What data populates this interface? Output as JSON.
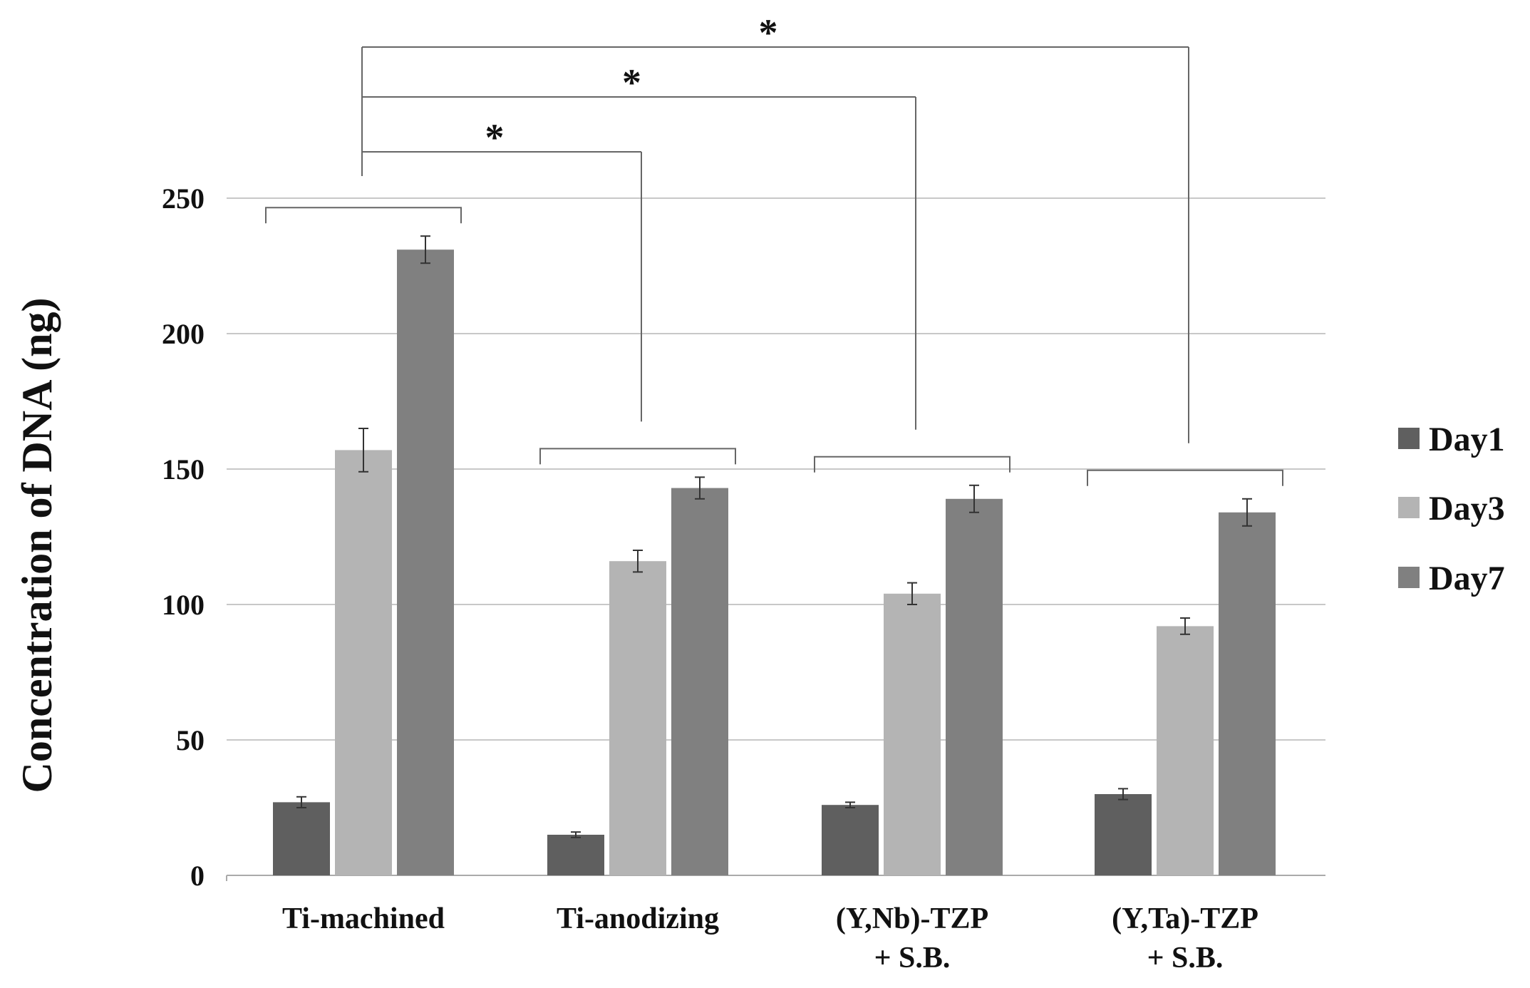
{
  "chart_data": {
    "type": "bar",
    "title": "",
    "xlabel": "",
    "ylabel": "Concentration of DNA (ng)",
    "ylim": [
      0,
      250
    ],
    "yticks": [
      0,
      50,
      100,
      150,
      200,
      250
    ],
    "grid": true,
    "legend_position": "right",
    "categories": [
      [
        "Ti-machined"
      ],
      [
        "Ti-anodizing"
      ],
      [
        "(Y,Nb)-TZP",
        "+ S.B."
      ],
      [
        "(Y,Ta)-TZP",
        "+ S.B."
      ]
    ],
    "series": [
      {
        "name": "Day1",
        "color": "#5f5f5f",
        "values": [
          27,
          15,
          26,
          30
        ],
        "errors": [
          2,
          1,
          1,
          2
        ]
      },
      {
        "name": "Day3",
        "color": "#b4b4b4",
        "values": [
          157,
          116,
          104,
          92
        ],
        "errors": [
          8,
          4,
          4,
          3
        ]
      },
      {
        "name": "Day7",
        "color": "#808080",
        "values": [
          231,
          143,
          139,
          134
        ],
        "errors": [
          5,
          4,
          5,
          5
        ]
      }
    ],
    "significance": [
      {
        "from": 0,
        "to": 1,
        "label": "*"
      },
      {
        "from": 0,
        "to": 2,
        "label": "*"
      },
      {
        "from": 0,
        "to": 3,
        "label": "*"
      }
    ]
  }
}
